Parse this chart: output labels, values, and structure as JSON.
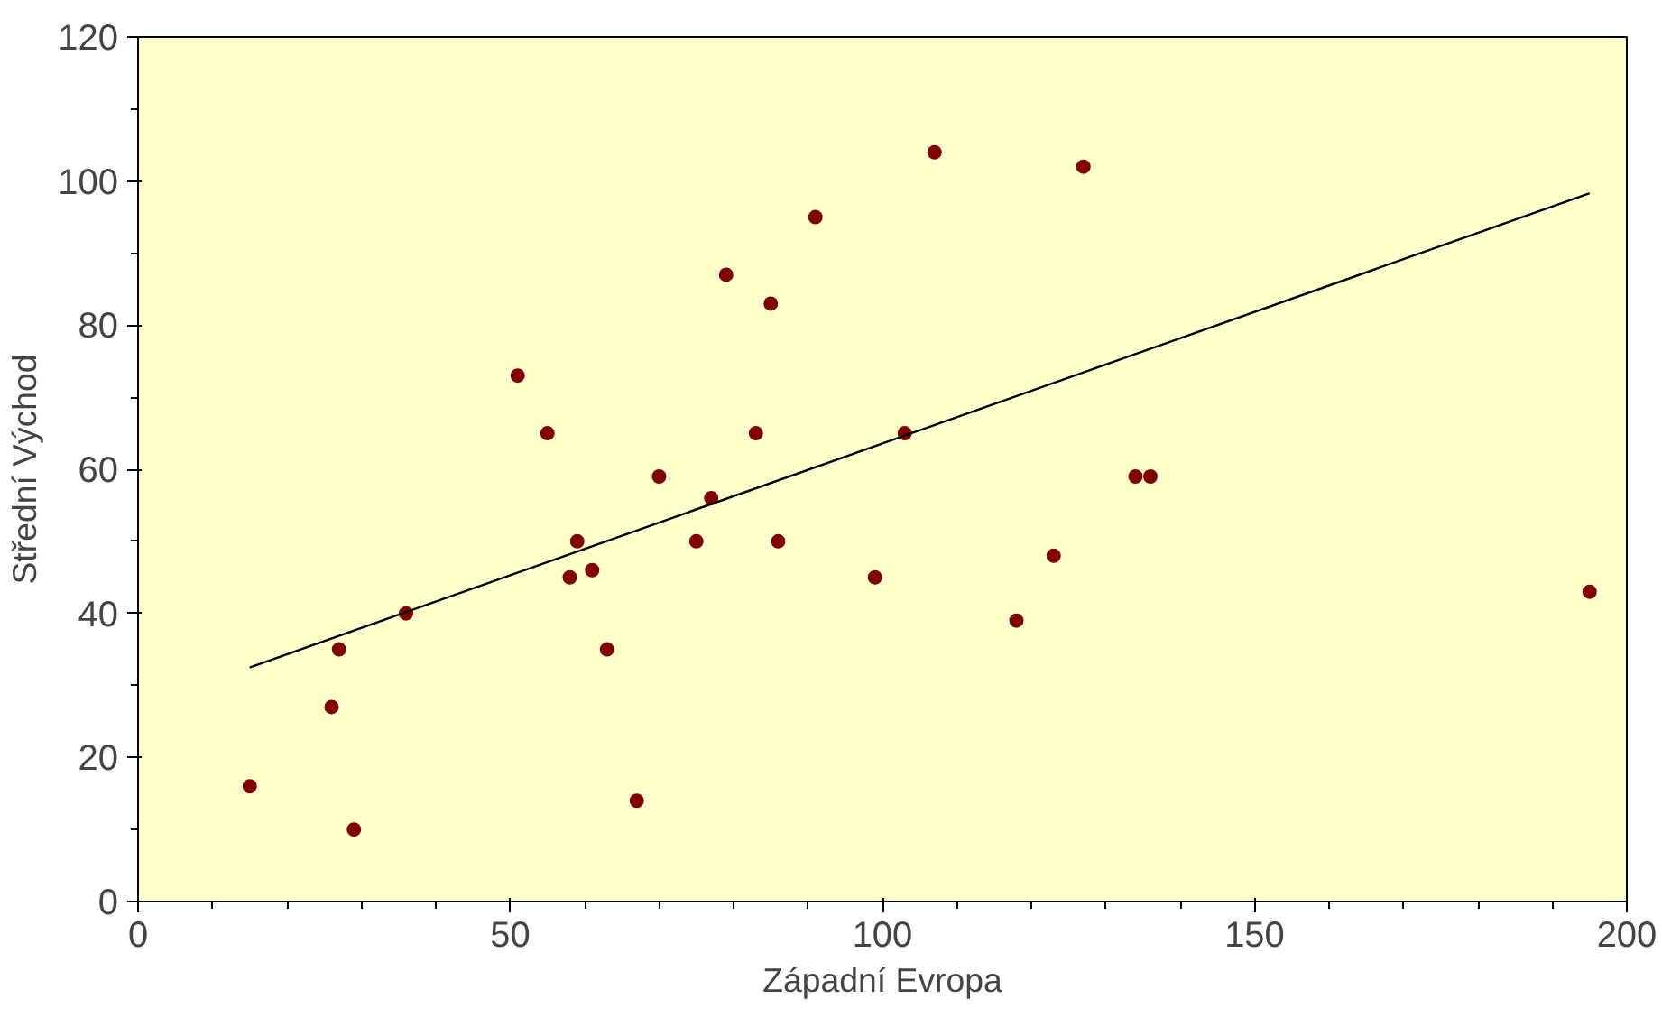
{
  "chart_data": {
    "type": "scatter",
    "xlabel": "Západní Evropa",
    "ylabel": "Střední Východ",
    "xlim": [
      0,
      200
    ],
    "ylim": [
      0,
      120
    ],
    "xticks": [
      0,
      50,
      100,
      150,
      200
    ],
    "yticks": [
      0,
      20,
      40,
      60,
      80,
      100,
      120
    ],
    "grid": false,
    "series": [
      {
        "marker": "circle",
        "color": "#800000",
        "x": [
          15,
          26,
          27,
          29,
          36,
          51,
          55,
          59,
          58,
          61,
          63,
          67,
          70,
          75,
          77,
          79,
          83,
          85,
          86,
          91,
          99,
          103,
          107,
          118,
          123,
          127,
          134,
          136,
          195
        ],
        "values": [
          16,
          27,
          35,
          10,
          40,
          73,
          65,
          50,
          45,
          46,
          35,
          14,
          59,
          50,
          56,
          87,
          65,
          83,
          50,
          95,
          45,
          65,
          104,
          39,
          48,
          102,
          59,
          59,
          43
        ]
      },
      {
        "type": "line",
        "marker": "none",
        "color": "#000000",
        "x": [
          15,
          195
        ],
        "values": [
          32.5,
          98.3
        ],
        "line_style": "solid"
      }
    ]
  }
}
